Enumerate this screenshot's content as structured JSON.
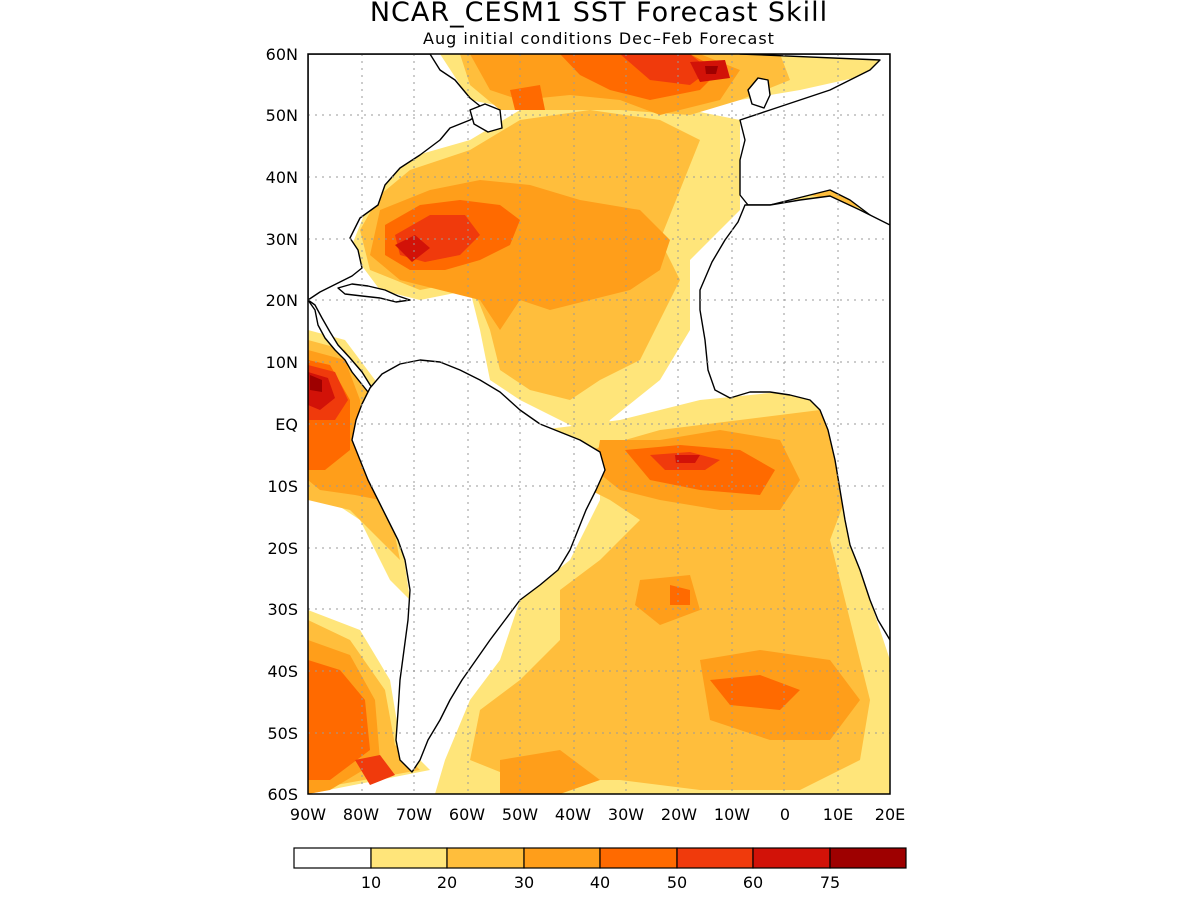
{
  "title": "NCAR_CESM1  SST Forecast Skill",
  "subtitle": "Aug initial conditions   Dec–Feb Forecast",
  "map": {
    "lat_range": [
      -60,
      60
    ],
    "lon_range": [
      -90,
      20
    ],
    "grid": true,
    "lat_ticks": [
      "60N",
      "50N",
      "40N",
      "30N",
      "20N",
      "10N",
      "EQ",
      "10S",
      "20S",
      "30S",
      "40S",
      "50S",
      "60S"
    ],
    "lon_ticks": [
      "90W",
      "80W",
      "70W",
      "60W",
      "50W",
      "40W",
      "30W",
      "20W",
      "10W",
      "0",
      "10E",
      "20E"
    ]
  },
  "colorbar": {
    "labels": [
      "10",
      "20",
      "30",
      "40",
      "50",
      "60",
      "75"
    ],
    "colors": [
      "#ffffff",
      "#ffe57a",
      "#ffbe3c",
      "#ff9e1a",
      "#ff6a00",
      "#f03a0c",
      "#d21208",
      "#9e0000"
    ]
  },
  "colors": {
    "skill_10_20": "#ffe57a",
    "skill_20_30": "#ffbe3c",
    "skill_30_40": "#ff9e1a",
    "skill_40_50": "#ff6a00",
    "skill_50_60": "#f03a0c",
    "skill_60_75": "#d21208",
    "skill_75_plus": "#9e0000"
  }
}
